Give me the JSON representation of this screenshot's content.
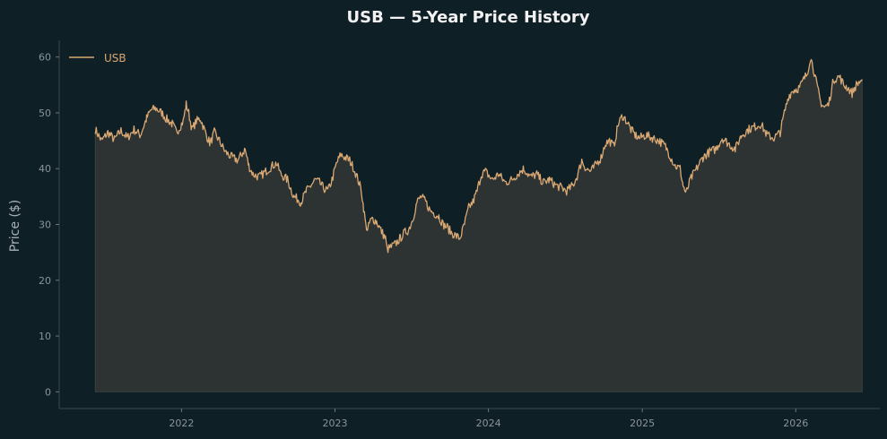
{
  "chart_data": {
    "type": "area",
    "title": "USB — 5-Year Price History",
    "xlabel": "",
    "ylabel": "Price ($)",
    "ylim": [
      -3,
      63
    ],
    "xlim": [
      "2021-03-16",
      "2026-07-20"
    ],
    "yticks": [
      0,
      10,
      20,
      30,
      40,
      50,
      60
    ],
    "xticks": [
      "2022",
      "2023",
      "2024",
      "2025",
      "2026"
    ],
    "grid": false,
    "legend": {
      "position": "top-left"
    },
    "colors": {
      "line": "#d9a873",
      "fill": "#2d3232",
      "background": "#0f1f26",
      "axis": "#3c474d"
    },
    "series": [
      {
        "name": "USB",
        "points": [
          [
            "2021-06-10",
            47.0
          ],
          [
            "2021-06-25",
            45.0
          ],
          [
            "2021-07-10",
            46.5
          ],
          [
            "2021-07-25",
            45.2
          ],
          [
            "2021-08-10",
            46.8
          ],
          [
            "2021-08-25",
            45.5
          ],
          [
            "2021-09-10",
            47.0
          ],
          [
            "2021-09-25",
            46.0
          ],
          [
            "2021-10-10",
            49.0
          ],
          [
            "2021-10-20",
            50.5
          ],
          [
            "2021-11-01",
            50.8
          ],
          [
            "2021-11-15",
            50.0
          ],
          [
            "2021-11-25",
            49.0
          ],
          [
            "2021-12-10",
            48.0
          ],
          [
            "2021-12-20",
            46.5
          ],
          [
            "2022-01-05",
            48.5
          ],
          [
            "2022-01-12",
            51.5
          ],
          [
            "2022-01-18",
            50.0
          ],
          [
            "2022-01-26",
            47.0
          ],
          [
            "2022-02-05",
            48.5
          ],
          [
            "2022-02-15",
            49.0
          ],
          [
            "2022-03-01",
            46.0
          ],
          [
            "2022-03-10",
            44.5
          ],
          [
            "2022-03-20",
            46.5
          ],
          [
            "2022-04-01",
            45.0
          ],
          [
            "2022-04-15",
            43.0
          ],
          [
            "2022-05-01",
            42.0
          ],
          [
            "2022-05-15",
            41.5
          ],
          [
            "2022-06-01",
            43.5
          ],
          [
            "2022-06-10",
            40.5
          ],
          [
            "2022-06-20",
            39.0
          ],
          [
            "2022-07-05",
            38.5
          ],
          [
            "2022-07-20",
            39.5
          ],
          [
            "2022-08-05",
            40.5
          ],
          [
            "2022-08-15",
            41.0
          ],
          [
            "2022-08-25",
            39.0
          ],
          [
            "2022-09-10",
            38.0
          ],
          [
            "2022-09-25",
            35.0
          ],
          [
            "2022-10-05",
            34.5
          ],
          [
            "2022-10-12",
            34.0
          ],
          [
            "2022-10-25",
            36.0
          ],
          [
            "2022-11-05",
            37.0
          ],
          [
            "2022-11-15",
            38.0
          ],
          [
            "2022-11-25",
            37.5
          ],
          [
            "2022-12-05",
            36.5
          ],
          [
            "2022-12-15",
            36.0
          ],
          [
            "2022-12-25",
            38.0
          ],
          [
            "2023-01-05",
            41.0
          ],
          [
            "2023-01-15",
            42.5
          ],
          [
            "2023-01-25",
            42.0
          ],
          [
            "2023-02-05",
            41.5
          ],
          [
            "2023-02-15",
            40.0
          ],
          [
            "2023-02-25",
            38.0
          ],
          [
            "2023-03-05",
            36.0
          ],
          [
            "2023-03-10",
            33.0
          ],
          [
            "2023-03-15",
            30.0
          ],
          [
            "2023-03-20",
            29.0
          ],
          [
            "2023-03-25",
            30.5
          ],
          [
            "2023-04-01",
            31.0
          ],
          [
            "2023-04-10",
            30.5
          ],
          [
            "2023-04-20",
            29.0
          ],
          [
            "2023-05-01",
            27.5
          ],
          [
            "2023-05-05",
            25.5
          ],
          [
            "2023-05-15",
            26.0
          ],
          [
            "2023-05-25",
            26.5
          ],
          [
            "2023-06-05",
            27.5
          ],
          [
            "2023-06-15",
            28.5
          ],
          [
            "2023-06-25",
            29.0
          ],
          [
            "2023-07-05",
            31.0
          ],
          [
            "2023-07-15",
            34.0
          ],
          [
            "2023-07-25",
            35.0
          ],
          [
            "2023-08-05",
            34.0
          ],
          [
            "2023-08-15",
            32.5
          ],
          [
            "2023-08-25",
            32.0
          ],
          [
            "2023-09-05",
            31.5
          ],
          [
            "2023-09-15",
            30.0
          ],
          [
            "2023-09-25",
            29.5
          ],
          [
            "2023-10-05",
            28.5
          ],
          [
            "2023-10-15",
            28.0
          ],
          [
            "2023-10-25",
            27.5
          ],
          [
            "2023-11-05",
            30.0
          ],
          [
            "2023-11-15",
            33.0
          ],
          [
            "2023-11-25",
            34.0
          ],
          [
            "2023-12-05",
            36.0
          ],
          [
            "2023-12-15",
            39.0
          ],
          [
            "2023-12-25",
            39.5
          ],
          [
            "2024-01-10",
            38.0
          ],
          [
            "2024-01-25",
            39.0
          ],
          [
            "2024-02-10",
            37.5
          ],
          [
            "2024-02-25",
            38.0
          ],
          [
            "2024-03-10",
            39.0
          ],
          [
            "2024-03-25",
            40.0
          ],
          [
            "2024-04-10",
            38.5
          ],
          [
            "2024-04-25",
            39.0
          ],
          [
            "2024-05-10",
            37.5
          ],
          [
            "2024-05-25",
            38.0
          ],
          [
            "2024-06-10",
            37.0
          ],
          [
            "2024-06-25",
            36.5
          ],
          [
            "2024-07-05",
            36.0
          ],
          [
            "2024-07-20",
            37.0
          ],
          [
            "2024-08-01",
            39.0
          ],
          [
            "2024-08-10",
            41.5
          ],
          [
            "2024-08-20",
            40.0
          ],
          [
            "2024-09-01",
            39.5
          ],
          [
            "2024-09-15",
            41.0
          ],
          [
            "2024-09-25",
            42.0
          ],
          [
            "2024-10-05",
            44.5
          ],
          [
            "2024-10-15",
            45.0
          ],
          [
            "2024-10-25",
            44.0
          ],
          [
            "2024-11-05",
            48.0
          ],
          [
            "2024-11-15",
            49.5
          ],
          [
            "2024-11-25",
            48.5
          ],
          [
            "2024-12-05",
            47.0
          ],
          [
            "2024-12-15",
            46.0
          ],
          [
            "2024-12-25",
            45.5
          ],
          [
            "2025-01-10",
            46.0
          ],
          [
            "2025-01-25",
            45.5
          ],
          [
            "2025-02-10",
            45.0
          ],
          [
            "2025-02-25",
            44.0
          ],
          [
            "2025-03-10",
            42.0
          ],
          [
            "2025-03-20",
            40.5
          ],
          [
            "2025-04-01",
            40.0
          ],
          [
            "2025-04-08",
            37.0
          ],
          [
            "2025-04-15",
            35.5
          ],
          [
            "2025-04-25",
            38.0
          ],
          [
            "2025-05-10",
            40.0
          ],
          [
            "2025-05-25",
            42.0
          ],
          [
            "2025-06-10",
            43.0
          ],
          [
            "2025-06-25",
            43.5
          ],
          [
            "2025-07-10",
            45.5
          ],
          [
            "2025-07-25",
            44.5
          ],
          [
            "2025-08-10",
            43.5
          ],
          [
            "2025-08-25",
            46.0
          ],
          [
            "2025-09-10",
            47.0
          ],
          [
            "2025-09-25",
            47.5
          ],
          [
            "2025-10-10",
            48.0
          ],
          [
            "2025-10-25",
            46.0
          ],
          [
            "2025-11-10",
            45.5
          ],
          [
            "2025-11-25",
            46.5
          ],
          [
            "2025-12-05",
            50.0
          ],
          [
            "2025-12-15",
            53.0
          ],
          [
            "2025-12-25",
            54.0
          ],
          [
            "2026-01-10",
            54.5
          ],
          [
            "2026-01-20",
            56.0
          ],
          [
            "2026-01-28",
            57.0
          ],
          [
            "2026-02-05",
            60.0
          ],
          [
            "2026-02-12",
            58.0
          ],
          [
            "2026-02-20",
            55.0
          ],
          [
            "2026-03-01",
            52.0
          ],
          [
            "2026-03-10",
            51.0
          ],
          [
            "2026-03-20",
            51.5
          ],
          [
            "2026-04-01",
            56.0
          ],
          [
            "2026-04-15",
            56.5
          ],
          [
            "2026-04-25",
            55.0
          ],
          [
            "2026-05-05",
            54.5
          ],
          [
            "2026-05-15",
            53.5
          ],
          [
            "2026-05-25",
            55.0
          ],
          [
            "2026-06-08",
            56.0
          ]
        ]
      }
    ]
  }
}
